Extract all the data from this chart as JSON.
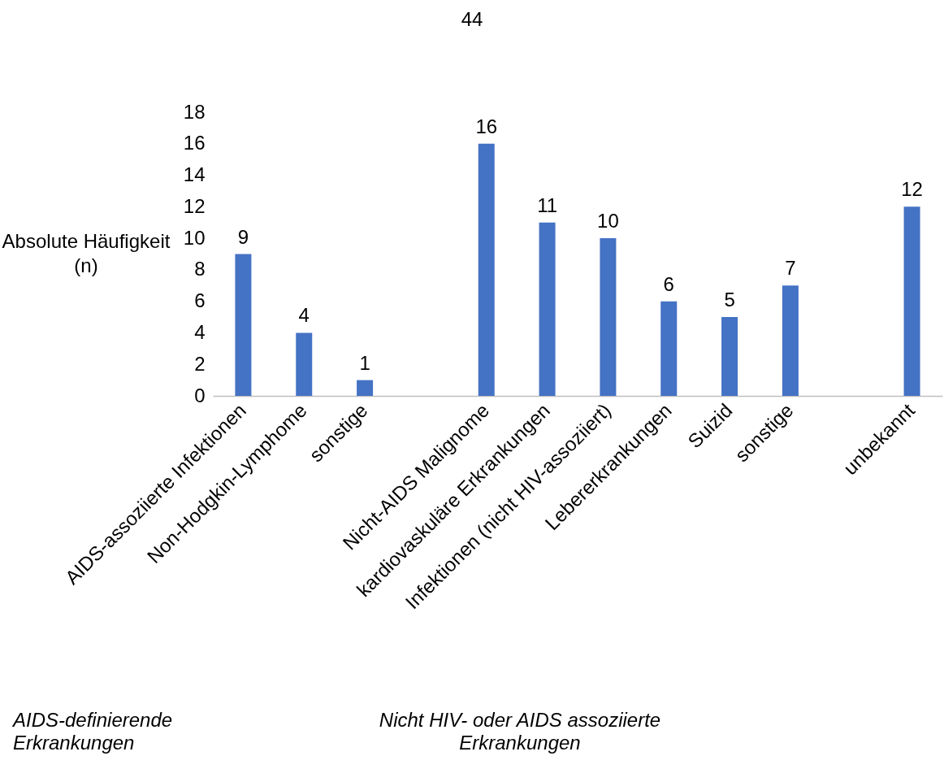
{
  "chart_data": {
    "type": "bar",
    "ylabel": "Absolute Häufigkeit (n)",
    "categories": [
      "AIDS-assoziierte Infektionen",
      "Non-Hodgkin-Lymphome",
      "sonstige",
      null,
      "Nicht-AIDS Malignome",
      "kardiovaskuläre Erkrankungen",
      "Infektionen (nicht HIV-assoziiert)",
      "Lebererkrankungen",
      "Suizid",
      "sonstige",
      null,
      "unbekannt"
    ],
    "values": [
      9,
      4,
      1,
      null,
      16,
      11,
      10,
      6,
      5,
      7,
      null,
      12
    ],
    "color": "#4472c4",
    "ylim": [
      0,
      18
    ],
    "yticks": [
      0,
      2,
      4,
      6,
      8,
      10,
      12,
      14,
      16,
      18
    ],
    "grid": false,
    "data_labels": true,
    "annotations": [
      "44",
      "AIDS-definierende Erkrankungen",
      "Nicht HIV- oder AIDS assoziierte Erkrankungen"
    ]
  }
}
